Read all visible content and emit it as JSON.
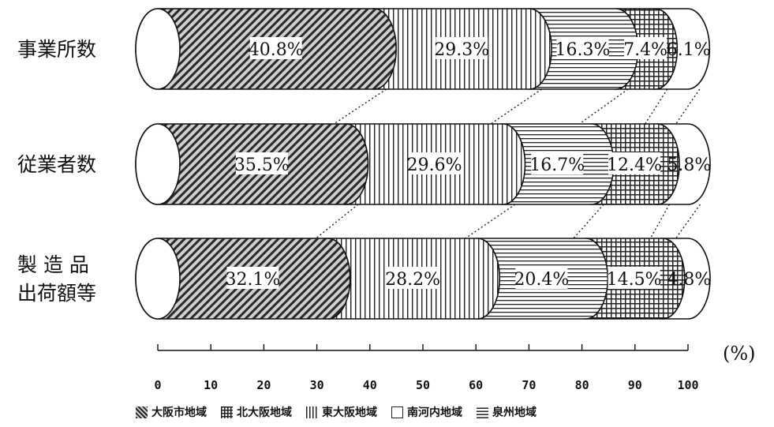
{
  "chart_data": {
    "type": "bar",
    "stacked": true,
    "orientation": "horizontal",
    "unit": "(%)",
    "xlim": [
      0,
      100
    ],
    "x_ticks": [
      "0",
      "10",
      "20",
      "30",
      "40",
      "50",
      "60",
      "70",
      "80",
      "90",
      "100"
    ],
    "categories": [
      {
        "label": [
          "事業所数"
        ]
      },
      {
        "label": [
          "従業者数"
        ]
      },
      {
        "label": [
          "製 造 品",
          "出荷額等"
        ]
      }
    ],
    "series": [
      {
        "name": "大阪市地域",
        "values": [
          40.8,
          35.5,
          32.1
        ],
        "labels": [
          "40.8%",
          "35.5%",
          "32.1%"
        ]
      },
      {
        "name": "東大阪地域",
        "values": [
          29.3,
          29.6,
          28.2
        ],
        "labels": [
          "29.3%",
          "29.6%",
          "28.2%"
        ]
      },
      {
        "name": "南河内地域",
        "values": [
          16.3,
          16.7,
          20.4
        ],
        "labels": [
          "16.3%",
          "16.7%",
          "20.4%"
        ]
      },
      {
        "name": "北大阪地域",
        "values": [
          7.4,
          12.4,
          14.5
        ],
        "labels": [
          "7.4%",
          "12.4%",
          "14.5%"
        ]
      },
      {
        "name": "泉州地域",
        "values": [
          6.1,
          5.8,
          4.8
        ],
        "labels": [
          "6.1%",
          "5.8%",
          "4.8%"
        ]
      }
    ],
    "legend_order": [
      {
        "name": "大阪市地域",
        "icon": "diagonal-hatch-icon"
      },
      {
        "name": "北大阪地域",
        "icon": "grid-hatch-icon"
      },
      {
        "name": "東大阪地域",
        "icon": "vertical-hatch-icon"
      },
      {
        "name": "南河内地域",
        "icon": "empty-box-icon"
      },
      {
        "name": "泉州地域",
        "icon": "horizontal-hatch-icon"
      }
    ],
    "legend_position": "bottom",
    "grid": false
  }
}
